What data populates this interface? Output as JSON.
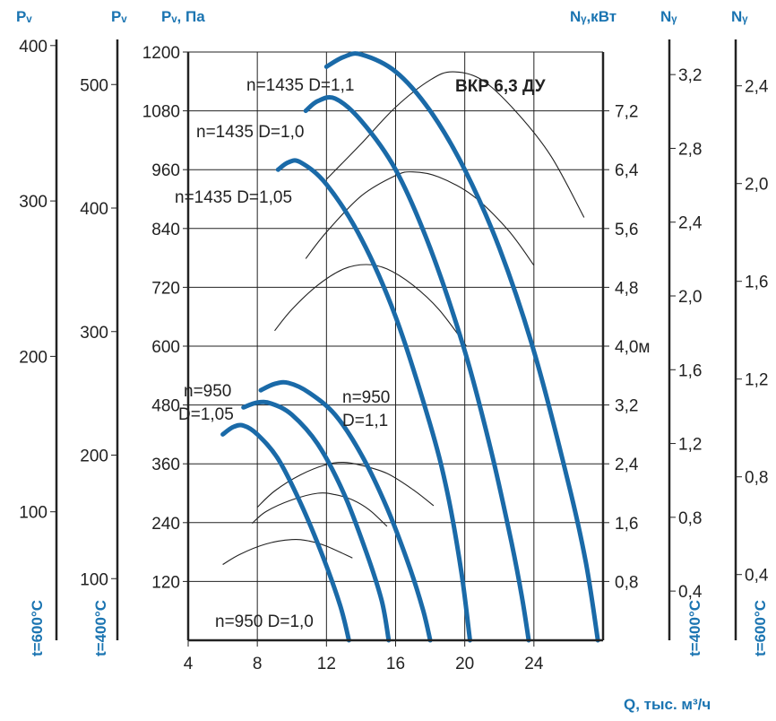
{
  "chart_data": {
    "type": "line",
    "title": "ВКР 6,3 ДУ",
    "xlabel": "Q, тыс. м³/ч",
    "xlim": [
      4,
      28
    ],
    "x_ticks": [
      "4",
      "8",
      "12",
      "16",
      "20",
      "24"
    ],
    "axes": {
      "pv_600": {
        "header": "Pᵥ",
        "ticks": [
          "100",
          "200",
          "300",
          "400"
        ],
        "temperature": "t=600°C"
      },
      "pv_400": {
        "header": "Pᵥ",
        "ticks": [
          "100",
          "200",
          "300",
          "400",
          "500"
        ],
        "temperature": "t=400°C"
      },
      "pv_main": {
        "header": "Pᵥ, Па",
        "ylim": [
          0,
          1200
        ],
        "ticks": [
          "120",
          "240",
          "360",
          "480",
          "600",
          "720",
          "840",
          "960",
          "1080",
          "1200"
        ]
      },
      "ny_main": {
        "header": "Nᵧ,кВт",
        "ticks": [
          "0,8",
          "1,6",
          "2,4",
          "3,2",
          "4,0м",
          "4,8",
          "5,6",
          "6,4",
          "7,2"
        ]
      },
      "ny_400": {
        "header": "Nᵧ",
        "ticks": [
          "0,4",
          "0,8",
          "1,2",
          "1,6",
          "2,0",
          "2,4",
          "2,8",
          "3,2"
        ],
        "temperature": "t=400°C"
      },
      "ny_600": {
        "header": "Nᵧ",
        "ticks": [
          "0,4",
          "0,8",
          "1,2",
          "1,6",
          "2,0",
          "2,4"
        ],
        "temperature": "t=600°C"
      }
    },
    "annotations": {
      "n1435_d11": "n=1435 D=1,1",
      "n1435_d10": "n=1435 D=1,0",
      "n1435_d105": "n=1435 D=1,05",
      "n950_d105_a": "n=950",
      "n950_d105_b": "D=1,05",
      "n950_d11_a": "n=950",
      "n950_d11_b": "D=1,1",
      "n950_d10": "n=950 D=1,0"
    },
    "pressure_series": [
      {
        "name": "n=1435 D=1,1",
        "x": [
          12.0,
          13.0,
          14.0,
          16.0,
          18.0,
          20.0,
          22.0,
          24.0,
          26.0,
          27.0,
          27.7
        ],
        "y": [
          1170,
          1190,
          1195,
          1160,
          1080,
          960,
          800,
          590,
          320,
          160,
          0
        ]
      },
      {
        "name": "n=1435 D=1,0",
        "x": [
          10.8,
          11.5,
          12.5,
          14.0,
          16.0,
          18.0,
          20.0,
          21.5,
          22.7,
          23.3,
          23.7
        ],
        "y": [
          1080,
          1100,
          1105,
          1060,
          960,
          800,
          590,
          390,
          200,
          90,
          0
        ]
      },
      {
        "name": "n=1435 D=1,05",
        "x": [
          9.2,
          9.8,
          10.5,
          12.0,
          14.0,
          16.0,
          18.0,
          19.0,
          19.8,
          20.3
        ],
        "y": [
          960,
          975,
          975,
          930,
          820,
          660,
          440,
          300,
          140,
          0
        ]
      },
      {
        "name": "n=950 D=1,1",
        "x": [
          8.2,
          9.0,
          9.8,
          11.0,
          12.5,
          14.0,
          15.5,
          16.8,
          17.6,
          18.0
        ],
        "y": [
          510,
          523,
          525,
          505,
          460,
          380,
          270,
          150,
          60,
          0
        ]
      },
      {
        "name": "n=950 D=1,05",
        "x": [
          7.2,
          8.0,
          8.8,
          10.0,
          11.5,
          13.0,
          14.3,
          15.2,
          15.6
        ],
        "y": [
          475,
          485,
          483,
          460,
          400,
          300,
          180,
          80,
          0
        ]
      },
      {
        "name": "n=950 D=1,0",
        "x": [
          6.0,
          6.6,
          7.2,
          8.0,
          9.2,
          10.5,
          11.8,
          12.8,
          13.3
        ],
        "y": [
          420,
          435,
          438,
          420,
          370,
          280,
          170,
          70,
          0
        ]
      }
    ],
    "power_series": [
      {
        "x": [
          12.0,
          14.0,
          16.0,
          18.0,
          19.3,
          21.0,
          23.0,
          25.0,
          26.9
        ],
        "y": [
          6.27,
          6.75,
          7.25,
          7.62,
          7.73,
          7.62,
          7.18,
          6.58,
          5.75
        ]
      },
      {
        "x": [
          10.8,
          12.0,
          14.0,
          16.0,
          17.0,
          18.5,
          20.5,
          22.5,
          24.0
        ],
        "y": [
          5.19,
          5.55,
          6.04,
          6.32,
          6.37,
          6.3,
          6.04,
          5.58,
          5.1
        ]
      },
      {
        "x": [
          9.0,
          10.0,
          11.5,
          13.0,
          14.3,
          15.5,
          17.0,
          18.5,
          20.1
        ],
        "y": [
          4.21,
          4.5,
          4.83,
          5.05,
          5.11,
          5.05,
          4.83,
          4.5,
          4.0
        ]
      },
      {
        "x": [
          8.0,
          9.0,
          10.5,
          12.0,
          13.0,
          14.0,
          15.5,
          17.0,
          18.2
        ],
        "y": [
          1.81,
          2.03,
          2.25,
          2.39,
          2.42,
          2.38,
          2.27,
          2.05,
          1.83
        ]
      },
      {
        "x": [
          7.7,
          8.5,
          10.0,
          11.5,
          12.5,
          13.5,
          14.5,
          15.5
        ],
        "y": [
          1.59,
          1.75,
          1.91,
          2.0,
          1.98,
          1.91,
          1.77,
          1.55
        ]
      },
      {
        "x": [
          6.0,
          7.0,
          8.5,
          10.0,
          11.0,
          12.0,
          13.5
        ],
        "y": [
          1.03,
          1.17,
          1.31,
          1.37,
          1.35,
          1.28,
          1.12
        ]
      }
    ]
  }
}
